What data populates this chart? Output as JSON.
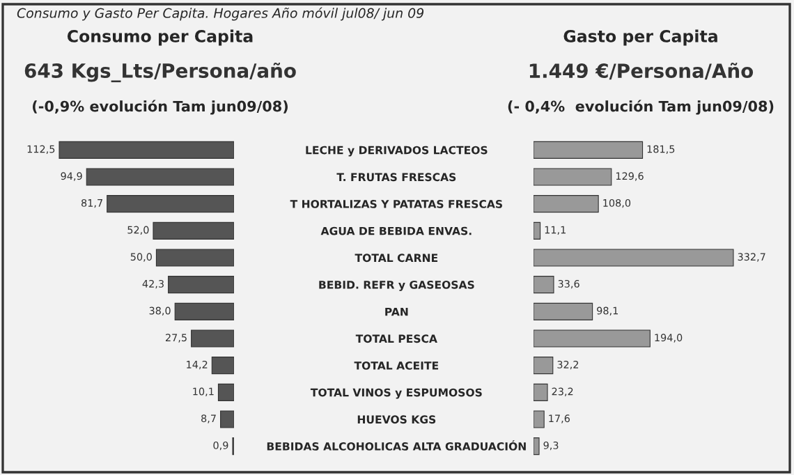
{
  "chart_data": [
    {
      "type": "bar",
      "orientation": "horizontal",
      "title": "Consumo per Capita",
      "subtitle": "643 Kgs_Lts/Persona/año",
      "annotations": [
        "Consumo y Gasto Per Capita. Hogares Año móvil jul08/ jun 09",
        "(-0,9% evolución Tam jun09/08)"
      ],
      "categories": [
        "LECHE y DERIVADOS LACTEOS",
        "T. FRUTAS FRESCAS",
        "T HORTALIZAS Y PATATAS FRESCAS",
        "AGUA DE BEBIDA ENVAS.",
        "TOTAL CARNE",
        "BEBID. REFR y GASEOSAS",
        "PAN",
        "TOTAL PESCA",
        "TOTAL ACEITE",
        "TOTAL VINOS y ESPUMOSOS",
        "HUEVOS KGS",
        "BEBIDAS ALCOHOLICAS ALTA GRADUACIÓN"
      ],
      "values": [
        112.5,
        94.9,
        81.7,
        52.0,
        50.0,
        42.3,
        38.0,
        27.5,
        14.2,
        10.1,
        8.7,
        0.9
      ],
      "value_labels": [
        "112,5",
        "94,9",
        "81,7",
        "52,0",
        "50,0",
        "42,3",
        "38,0",
        "27,5",
        "14,2",
        "10,1",
        "8,7",
        "0,9"
      ],
      "color": "#555555",
      "grid": false,
      "legend": false
    },
    {
      "type": "bar",
      "orientation": "horizontal",
      "title": "Gasto per Capita",
      "subtitle": "1.449 €/Persona/Año",
      "annotations": [
        "(- 0,4%  evolución Tam jun09/08)"
      ],
      "categories": [
        null,
        null,
        null,
        null,
        null,
        null,
        null,
        null,
        null,
        null,
        null,
        null
      ],
      "values": [
        181.5,
        129.6,
        108.0,
        11.1,
        332.7,
        33.6,
        98.1,
        194.0,
        32.2,
        23.2,
        17.6,
        9.3
      ],
      "value_labels": [
        "181,5",
        "129,6",
        "108,0",
        "11,1",
        "332,7",
        "33,6",
        "98,1",
        "194,0",
        "32,2",
        "23,2",
        "17,6",
        "9,3"
      ],
      "color": "#999999",
      "grid": false,
      "legend": false
    }
  ]
}
